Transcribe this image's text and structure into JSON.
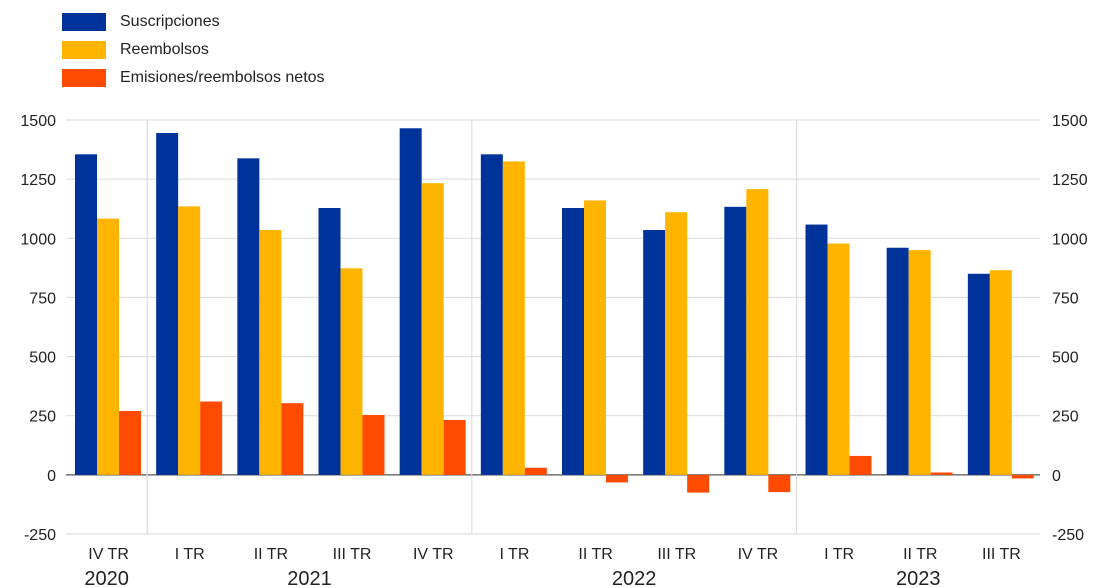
{
  "chart_data": {
    "type": "bar",
    "categories": [
      "IV TR",
      "I TR",
      "II TR",
      "III TR",
      "IV TR",
      "I TR",
      "II TR",
      "III TR",
      "IV TR",
      "I TR",
      "II TR",
      "III TR"
    ],
    "year_groups": [
      {
        "label": "2020",
        "start": 0,
        "end": 0
      },
      {
        "label": "2021",
        "start": 1,
        "end": 4
      },
      {
        "label": "2022",
        "start": 5,
        "end": 8
      },
      {
        "label": "2023",
        "start": 9,
        "end": 11
      }
    ],
    "series": [
      {
        "name": "Suscripciones",
        "color": "#003399",
        "values": [
          1355,
          1445,
          1338,
          1128,
          1465,
          1355,
          1128,
          1035,
          1133,
          1058,
          960,
          850
        ]
      },
      {
        "name": "Reembolsos",
        "color": "#ffb400",
        "values": [
          1083,
          1135,
          1035,
          873,
          1233,
          1325,
          1160,
          1110,
          1208,
          978,
          950,
          865
        ]
      },
      {
        "name": "Emisiones/reembolsos netos",
        "color": "#ff4b00",
        "values": [
          270,
          310,
          303,
          253,
          232,
          30,
          -32,
          -75,
          -73,
          80,
          10,
          -15
        ]
      }
    ],
    "ylim": [
      -250,
      1500
    ],
    "yticks": [
      "1500",
      "1250",
      "1000",
      "750",
      "500",
      "250",
      "0",
      "-250"
    ],
    "ytick_values": [
      1500,
      1250,
      1000,
      750,
      500,
      250,
      0,
      -250
    ],
    "grid": true,
    "legend_position": "top-left",
    "title": "",
    "xlabel": "",
    "ylabel": ""
  }
}
